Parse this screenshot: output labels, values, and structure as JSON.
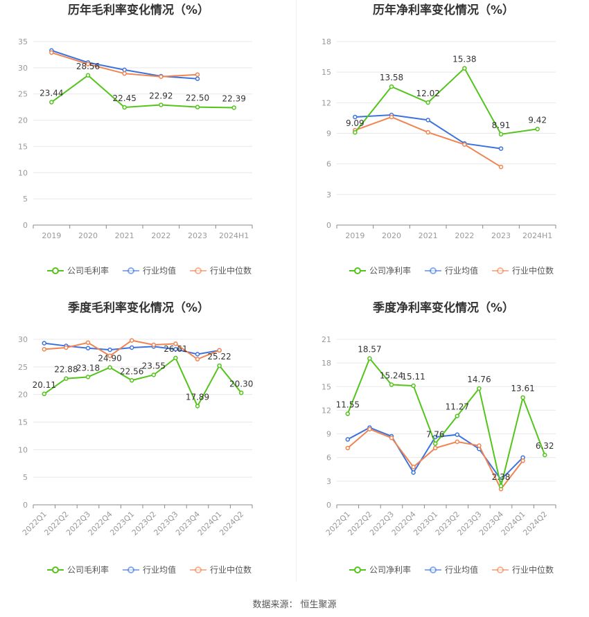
{
  "source": {
    "label": "数据来源：",
    "name": "恒生聚源"
  },
  "colors": {
    "company": "#52c41a",
    "avg": "#3c72dc",
    "median": "#f08450",
    "grid": "#e8e8e8",
    "axis": "#999999",
    "text": "#333333"
  },
  "chart_data": [
    {
      "type": "line",
      "title": "历年毛利率变化情况（%）",
      "categories": [
        "2019",
        "2020",
        "2021",
        "2022",
        "2023",
        "2024H1"
      ],
      "ylim": [
        0,
        35
      ],
      "yticks": [
        0,
        5,
        10,
        15,
        20,
        25,
        30,
        35
      ],
      "rotate_x": false,
      "series": [
        {
          "name": "公司毛利率",
          "key": "company",
          "values": [
            23.44,
            28.56,
            22.45,
            22.92,
            22.5,
            22.39
          ],
          "labels": [
            "23.44",
            "28.56",
            "22.45",
            "22.92",
            "22.50",
            "22.39"
          ]
        },
        {
          "name": "行业均值",
          "key": "avg",
          "values": [
            33.3,
            31.0,
            29.6,
            28.4,
            27.9,
            null
          ]
        },
        {
          "name": "行业中位数",
          "key": "median",
          "values": [
            32.9,
            30.7,
            28.9,
            28.3,
            28.7,
            null
          ]
        }
      ]
    },
    {
      "type": "line",
      "title": "历年净利率变化情况（%）",
      "categories": [
        "2019",
        "2020",
        "2021",
        "2022",
        "2023",
        "2024H1"
      ],
      "ylim": [
        0,
        18
      ],
      "yticks": [
        0,
        3,
        6,
        9,
        12,
        15,
        18
      ],
      "rotate_x": false,
      "series": [
        {
          "name": "公司净利率",
          "key": "company",
          "values": [
            9.09,
            13.58,
            12.02,
            15.38,
            8.91,
            9.42
          ],
          "labels": [
            "9.09",
            "13.58",
            "12.02",
            "15.38",
            "8.91",
            "9.42"
          ]
        },
        {
          "name": "行业均值",
          "key": "avg",
          "values": [
            10.6,
            10.8,
            10.3,
            8.0,
            7.5,
            null
          ]
        },
        {
          "name": "行业中位数",
          "key": "median",
          "values": [
            9.3,
            10.6,
            9.1,
            7.9,
            5.7,
            null
          ]
        }
      ]
    },
    {
      "type": "line",
      "title": "季度毛利率变化情况（%）",
      "categories": [
        "2022Q1",
        "2022Q2",
        "2022Q3",
        "2022Q4",
        "2023Q1",
        "2023Q2",
        "2023Q3",
        "2023Q4",
        "2024Q1",
        "2024Q2"
      ],
      "ylim": [
        0,
        30
      ],
      "yticks": [
        0,
        5,
        10,
        15,
        20,
        25,
        30
      ],
      "rotate_x": true,
      "series": [
        {
          "name": "公司毛利率",
          "key": "company",
          "values": [
            20.11,
            22.88,
            23.18,
            24.9,
            22.56,
            23.55,
            26.61,
            17.89,
            25.22,
            20.3
          ],
          "labels": [
            "20.11",
            "22.88",
            "23.18",
            "24.90",
            "22.56",
            "23.55",
            "26.61",
            "17.89",
            "25.22",
            "20.30"
          ]
        },
        {
          "name": "行业均值",
          "key": "avg",
          "values": [
            29.3,
            28.8,
            28.4,
            28.1,
            28.5,
            28.7,
            28.2,
            27.3,
            28.0,
            null
          ]
        },
        {
          "name": "行业中位数",
          "key": "median",
          "values": [
            28.2,
            28.5,
            29.4,
            27.0,
            29.8,
            29.0,
            29.2,
            26.4,
            28.0,
            null
          ]
        }
      ]
    },
    {
      "type": "line",
      "title": "季度净利率变化情况（%）",
      "categories": [
        "2022Q1",
        "2022Q2",
        "2022Q3",
        "2022Q4",
        "2023Q1",
        "2023Q2",
        "2023Q3",
        "2023Q4",
        "2024Q1",
        "2024Q2"
      ],
      "ylim": [
        0,
        21
      ],
      "yticks": [
        0,
        3,
        6,
        9,
        12,
        15,
        18,
        21
      ],
      "rotate_x": true,
      "series": [
        {
          "name": "公司净利率",
          "key": "company",
          "values": [
            11.55,
            18.57,
            15.24,
            15.11,
            7.76,
            11.27,
            14.76,
            2.38,
            13.61,
            6.32
          ],
          "labels": [
            "11.55",
            "18.57",
            "15.24",
            "15.11",
            "7.76",
            "11.27",
            "14.76",
            "2.38",
            "13.61",
            "6.32"
          ]
        },
        {
          "name": "行业均值",
          "key": "avg",
          "values": [
            8.3,
            9.8,
            8.7,
            4.1,
            8.6,
            8.9,
            7.1,
            3.2,
            6.0,
            null
          ]
        },
        {
          "name": "行业中位数",
          "key": "median",
          "values": [
            7.2,
            9.6,
            8.5,
            4.8,
            7.2,
            8.0,
            7.5,
            2.0,
            5.6,
            null
          ]
        }
      ]
    }
  ]
}
